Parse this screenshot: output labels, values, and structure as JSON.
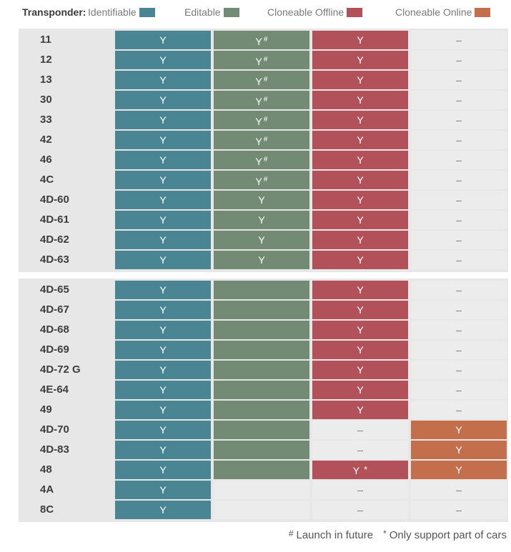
{
  "legend": {
    "title": "Transponder:",
    "items": [
      {
        "label": "Identifiable",
        "color": "#4a8593"
      },
      {
        "label": "Editable",
        "color": "#738b74"
      },
      {
        "label": "Cloneable Offline",
        "color": "#b3515b"
      },
      {
        "label": "Cloneable Online",
        "color": "#c36f4c"
      }
    ]
  },
  "symbols": {
    "yes": "Y",
    "none": "–",
    "launch_mark": "#",
    "partial_mark": "*"
  },
  "groups": [
    {
      "rows": [
        {
          "name": "11",
          "identifiable": "Y",
          "editable": "Y#",
          "offline": "Y",
          "online": "–"
        },
        {
          "name": "12",
          "identifiable": "Y",
          "editable": "Y#",
          "offline": "Y",
          "online": "–"
        },
        {
          "name": "13",
          "identifiable": "Y",
          "editable": "Y#",
          "offline": "Y",
          "online": "–"
        },
        {
          "name": "30",
          "identifiable": "Y",
          "editable": "Y#",
          "offline": "Y",
          "online": "–"
        },
        {
          "name": "33",
          "identifiable": "Y",
          "editable": "Y#",
          "offline": "Y",
          "online": "–"
        },
        {
          "name": "42",
          "identifiable": "Y",
          "editable": "Y#",
          "offline": "Y",
          "online": "–"
        },
        {
          "name": "46",
          "identifiable": "Y",
          "editable": "Y#",
          "offline": "Y",
          "online": "–"
        },
        {
          "name": "4C",
          "identifiable": "Y",
          "editable": "Y#",
          "offline": "Y",
          "online": "–"
        },
        {
          "name": "4D-60",
          "identifiable": "Y",
          "editable": "Y",
          "offline": "Y",
          "online": "–"
        },
        {
          "name": "4D-61",
          "identifiable": "Y",
          "editable": "Y",
          "offline": "Y",
          "online": "–"
        },
        {
          "name": "4D-62",
          "identifiable": "Y",
          "editable": "Y",
          "offline": "Y",
          "online": "–"
        },
        {
          "name": "4D-63",
          "identifiable": "Y",
          "editable": "Y",
          "offline": "Y",
          "online": "–"
        }
      ]
    },
    {
      "rows": [
        {
          "name": "4D-65",
          "identifiable": "Y",
          "editable": "filled",
          "offline": "Y",
          "online": "–"
        },
        {
          "name": "4D-67",
          "identifiable": "Y",
          "editable": "filled",
          "offline": "Y",
          "online": "–"
        },
        {
          "name": "4D-68",
          "identifiable": "Y",
          "editable": "filled",
          "offline": "Y",
          "online": "–"
        },
        {
          "name": "4D-69",
          "identifiable": "Y",
          "editable": "filled",
          "offline": "Y",
          "online": "–"
        },
        {
          "name": "4D-72 G",
          "identifiable": "Y",
          "editable": "filled",
          "offline": "Y",
          "online": "–"
        },
        {
          "name": "4E-64",
          "identifiable": "Y",
          "editable": "filled",
          "offline": "Y",
          "online": "–"
        },
        {
          "name": "49",
          "identifiable": "Y",
          "editable": "filled",
          "offline": "Y",
          "online": "–"
        },
        {
          "name": "4D-70",
          "identifiable": "Y",
          "editable": "filled",
          "offline": "–",
          "online": "Y"
        },
        {
          "name": "4D-83",
          "identifiable": "Y",
          "editable": "filled",
          "offline": "–",
          "online": "Y"
        },
        {
          "name": "48",
          "identifiable": "Y",
          "editable": "filled",
          "offline": "Y*",
          "online": "Y"
        },
        {
          "name": "4A",
          "identifiable": "Y",
          "editable": "",
          "offline": "–",
          "online": "–"
        },
        {
          "name": "8C",
          "identifiable": "Y",
          "editable": "",
          "offline": "–",
          "online": "–"
        }
      ]
    }
  ],
  "footnotes": [
    {
      "symbol": "#",
      "text": "Launch in future"
    },
    {
      "symbol": "*",
      "text": "Only support part of cars"
    }
  ]
}
